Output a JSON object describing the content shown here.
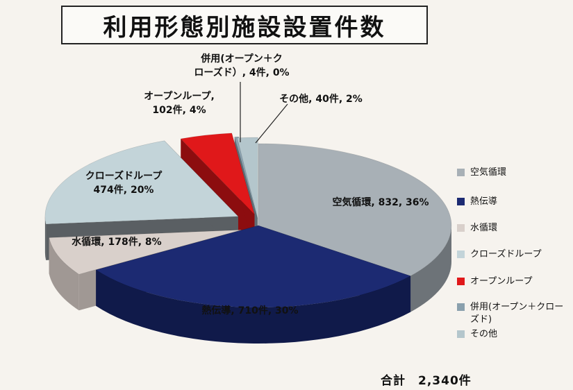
{
  "title": "利用形態別施設設置件数",
  "total": {
    "label": "合計",
    "value": "2,340件"
  },
  "chart_data": {
    "type": "pie",
    "title": "利用形態別施設設置件数",
    "total_count": 2340,
    "series": [
      {
        "name": "空気循環",
        "count": 832,
        "percent": 36,
        "color": "#a8b0b6",
        "side": "#6d7378",
        "data_label": "空気循環, 832, 36%"
      },
      {
        "name": "熱伝導",
        "count": 710,
        "percent": 30,
        "color": "#1c2a72",
        "side": "#101a4a",
        "data_label": "熱伝導, 710件, 30%"
      },
      {
        "name": "水循環",
        "count": 178,
        "percent": 8,
        "color": "#d9d0cb",
        "side": "#a09894",
        "data_label": "水循環, 178件, 8%"
      },
      {
        "name": "クローズドループ",
        "count": 474,
        "percent": 20,
        "color": "#c3d4d9",
        "side": "#5a5f63",
        "data_label": "クローズドループ\n474件, 20%"
      },
      {
        "name": "オープンループ",
        "count": 102,
        "percent": 4,
        "color": "#e0181a",
        "side": "#8c0d0f",
        "data_label": "オープンループ,\n102件, 4%"
      },
      {
        "name": "併用(オープン＋クローズド)",
        "count": 4,
        "percent": 0,
        "color": "#8aa0ad",
        "side": "#5f6d75",
        "data_label": "併用(オープン＋ク\nローズド）, 4件, 0%"
      },
      {
        "name": "その他",
        "count": 40,
        "percent": 2,
        "color": "#b4c6cc",
        "side": "#7c8a8f",
        "data_label": "その他, 40件, 2%"
      }
    ],
    "legend_position": "right"
  }
}
